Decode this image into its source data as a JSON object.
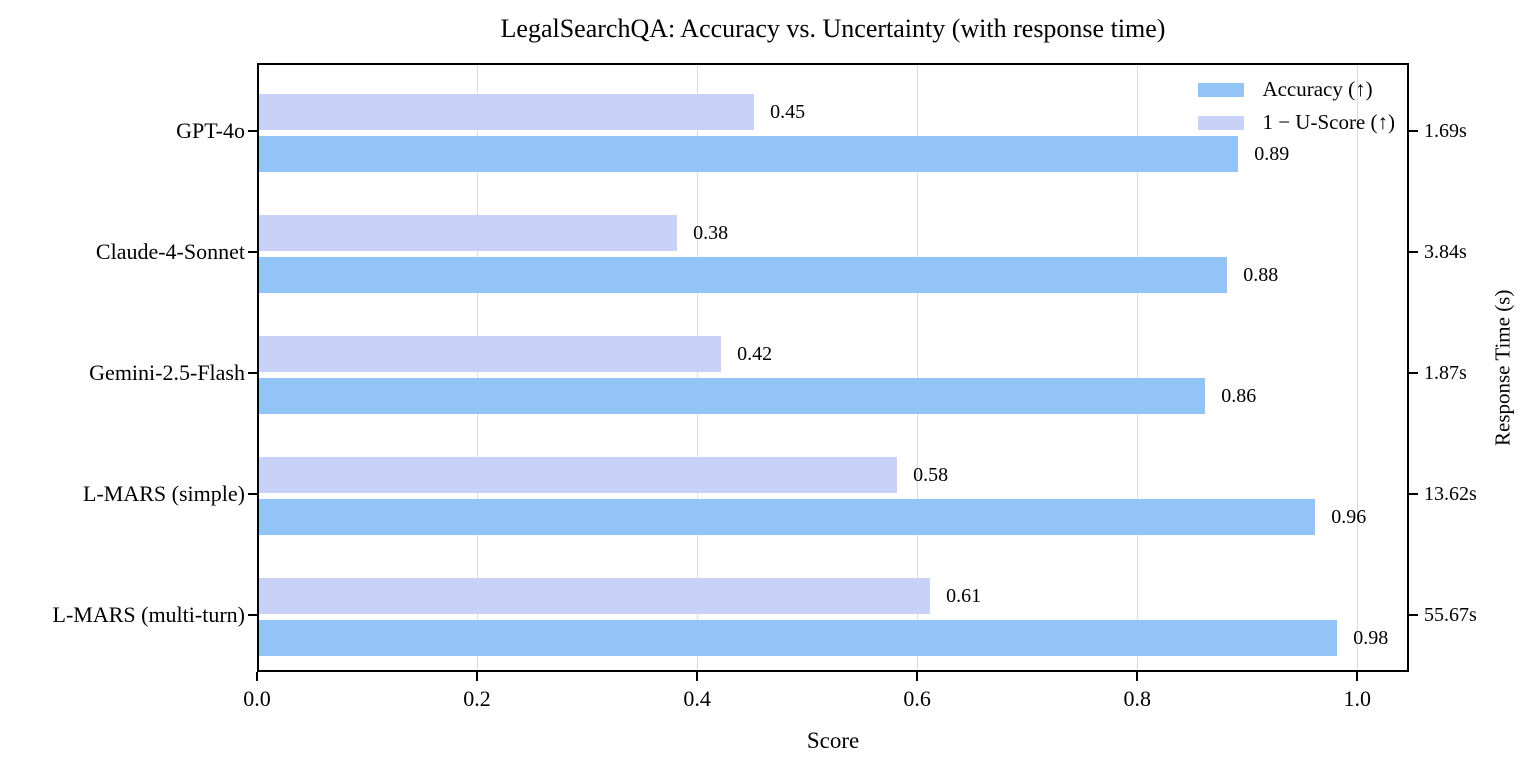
{
  "chart_data": {
    "type": "bar",
    "orientation": "horizontal",
    "title": "LegalSearchQA: Accuracy vs. Uncertainty (with response time)",
    "xlabel": "Score",
    "right_axis_label": "Response Time (s)",
    "xlim": [
      0,
      1.047
    ],
    "xticks": [
      0.0,
      0.2,
      0.4,
      0.6,
      0.8,
      1.0
    ],
    "categories": [
      "GPT-4o",
      "Claude-4-Sonnet",
      "Gemini-2.5-Flash",
      "L-MARS (simple)",
      "L-MARS (multi-turn)"
    ],
    "series": [
      {
        "name": "Accuracy (↑)",
        "color": "#92C4F7",
        "values": [
          0.89,
          0.88,
          0.86,
          0.96,
          0.98
        ]
      },
      {
        "name": "1 − U-Score (↑)",
        "color": "#C8D1F8",
        "values": [
          0.45,
          0.38,
          0.42,
          0.58,
          0.61
        ]
      }
    ],
    "response_times": [
      "1.69s",
      "3.84s",
      "1.87s",
      "13.62s",
      "55.67s"
    ],
    "legend_position": "upper right",
    "grid": "vertical",
    "colors": {
      "grid": "#DCDCDC",
      "spine": "#000000",
      "background": "#FFFFFF"
    }
  }
}
